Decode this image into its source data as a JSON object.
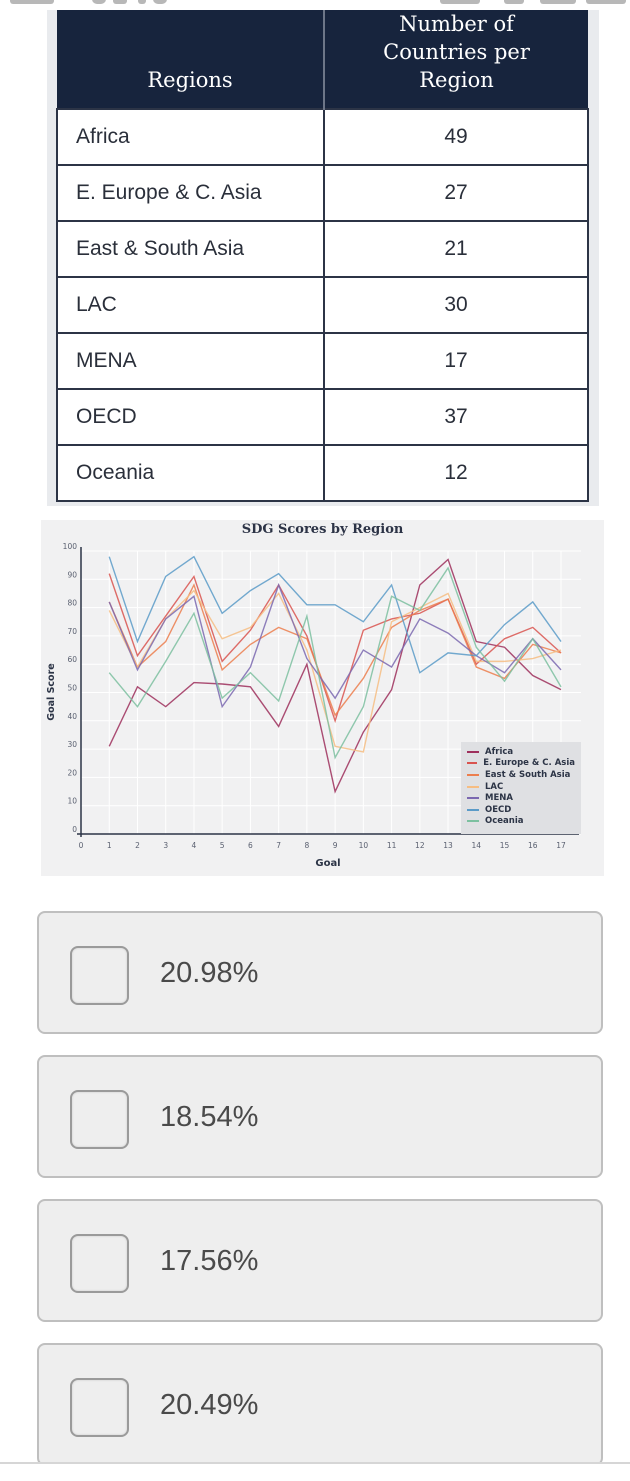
{
  "table": {
    "headers": [
      "Regions",
      "Number of Countries per Region"
    ],
    "header_lines": [
      [
        "Regions"
      ],
      [
        "Number of",
        "Countries per",
        "Region"
      ]
    ],
    "rows": [
      {
        "region": "Africa",
        "count": "49"
      },
      {
        "region": "E. Europe & C. Asia",
        "count": "27"
      },
      {
        "region": "East & South Asia",
        "count": "21"
      },
      {
        "region": "LAC",
        "count": "30"
      },
      {
        "region": "MENA",
        "count": "17"
      },
      {
        "region": "OECD",
        "count": "37"
      },
      {
        "region": "Oceania",
        "count": "12"
      }
    ]
  },
  "chart": {
    "title": "SDG Scores by Region",
    "xlabel": "Goal",
    "ylabel": "Goal Score"
  },
  "chart_data": {
    "type": "line",
    "title": "SDG Scores by Region",
    "xlabel": "Goal",
    "ylabel": "Goal Score",
    "x": [
      1,
      2,
      3,
      4,
      5,
      6,
      7,
      8,
      9,
      10,
      11,
      12,
      13,
      14,
      15,
      16,
      17
    ],
    "xlim": [
      0,
      17
    ],
    "ylim": [
      0,
      100
    ],
    "x_ticks": [
      0,
      1,
      2,
      3,
      4,
      5,
      6,
      7,
      8,
      9,
      10,
      11,
      12,
      13,
      14,
      15,
      16,
      17
    ],
    "y_ticks": [
      0,
      10,
      20,
      30,
      40,
      50,
      60,
      70,
      80,
      90,
      100
    ],
    "grid": true,
    "legend_position": "lower right",
    "series": [
      {
        "name": "Africa",
        "color": "#9e2f5c",
        "values": [
          31,
          52,
          45,
          53.5,
          53,
          52,
          38,
          60,
          15,
          36,
          51,
          88,
          97,
          68,
          66,
          56,
          51
        ]
      },
      {
        "name": "E. Europe & C. Asia",
        "color": "#d9534f",
        "values": [
          92,
          63,
          77,
          91,
          61,
          72,
          88,
          70,
          40,
          72,
          76,
          78,
          83,
          60,
          69,
          73,
          64
        ]
      },
      {
        "name": "East & South Asia",
        "color": "#ec7e4e",
        "values": [
          82,
          59,
          68,
          88,
          58,
          67,
          73,
          69,
          42,
          55,
          73,
          79,
          83,
          59,
          55,
          67,
          64
        ]
      },
      {
        "name": "LAC",
        "color": "#f6bd82",
        "values": [
          79,
          59,
          76,
          86,
          69,
          73,
          85,
          65,
          31,
          29,
          75,
          80,
          85,
          61,
          61,
          62,
          65
        ]
      },
      {
        "name": "MENA",
        "color": "#7b68b0",
        "values": [
          82,
          58,
          76,
          84,
          45,
          59,
          88,
          62,
          48,
          65,
          59,
          76,
          71,
          63,
          57,
          69,
          58
        ]
      },
      {
        "name": "OECD",
        "color": "#5b9bc8",
        "values": [
          98,
          68,
          91,
          98,
          78,
          86,
          92,
          81,
          81,
          75,
          88,
          57,
          64,
          63,
          74,
          82,
          68
        ]
      },
      {
        "name": "Oceania",
        "color": "#7cc0a0",
        "values": [
          57,
          45,
          61,
          78,
          48,
          57,
          47,
          77,
          27,
          45,
          84,
          79,
          94,
          66,
          54,
          69,
          52
        ]
      }
    ]
  },
  "options": [
    {
      "label": "20.98%",
      "checked": false
    },
    {
      "label": "18.54%",
      "checked": false
    },
    {
      "label": "17.56%",
      "checked": false
    },
    {
      "label": "20.49%",
      "checked": false
    }
  ]
}
